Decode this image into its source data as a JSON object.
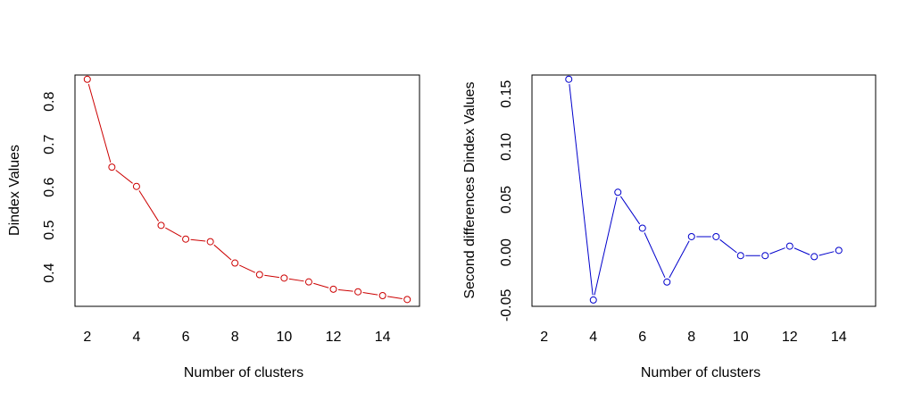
{
  "chart_data": [
    {
      "type": "line",
      "xlabel": "Number of clusters",
      "ylabel": "Dindex Values",
      "color": "#CC0000",
      "xlim": [
        1.5,
        15.5
      ],
      "ylim": [
        0.322,
        0.862
      ],
      "xticks": [
        2,
        4,
        6,
        8,
        10,
        12,
        14
      ],
      "xtick_labels": [
        "2",
        "4",
        "6",
        "8",
        "10",
        "12",
        "14"
      ],
      "yticks": [
        0.4,
        0.5,
        0.6,
        0.7,
        0.8
      ],
      "ytick_labels": [
        "0.4",
        "0.5",
        "0.6",
        "0.7",
        "0.8"
      ],
      "series": [
        {
          "x": [
            2,
            3,
            4,
            5,
            6,
            7,
            8,
            9,
            10,
            11,
            12,
            13,
            14,
            15
          ],
          "y": [
            0.852,
            0.647,
            0.602,
            0.511,
            0.479,
            0.473,
            0.423,
            0.396,
            0.388,
            0.379,
            0.362,
            0.356,
            0.347,
            0.338
          ]
        }
      ]
    },
    {
      "type": "line",
      "xlabel": "Number of clusters",
      "ylabel": "Second differences Dindex Values",
      "color": "#0000CC",
      "xlim": [
        1.5,
        15.5
      ],
      "ylim": [
        -0.051,
        0.168
      ],
      "xticks": [
        2,
        4,
        6,
        8,
        10,
        12,
        14
      ],
      "xtick_labels": [
        "2",
        "4",
        "6",
        "8",
        "10",
        "12",
        "14"
      ],
      "yticks": [
        -0.05,
        0.0,
        0.05,
        0.1,
        0.15
      ],
      "ytick_labels": [
        "-0.05",
        "0.00",
        "0.05",
        "0.10",
        "0.15"
      ],
      "series": [
        {
          "x": [
            3,
            4,
            5,
            6,
            7,
            8,
            9,
            10,
            11,
            12,
            13,
            14
          ],
          "y": [
            0.164,
            -0.045,
            0.057,
            0.023,
            -0.028,
            0.015,
            0.015,
            -0.003,
            -0.003,
            0.006,
            -0.004,
            0.002
          ]
        }
      ]
    }
  ]
}
